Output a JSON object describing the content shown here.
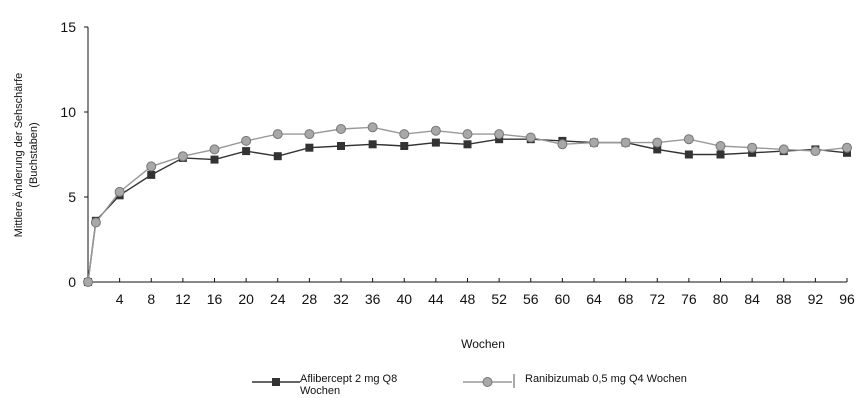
{
  "chart_data": {
    "type": "line",
    "title": "",
    "ylabel_line1": "Mittlere Änderung der Sehschärfe",
    "ylabel_line2": "(Buchstaben)",
    "xlabel": "Wochen",
    "ylim": [
      0,
      15
    ],
    "xlim": [
      0,
      96
    ],
    "yticks": [
      0,
      5,
      10,
      15
    ],
    "xticks": [
      4,
      8,
      12,
      16,
      20,
      24,
      28,
      32,
      36,
      40,
      44,
      48,
      52,
      56,
      60,
      64,
      68,
      72,
      76,
      80,
      84,
      88,
      92,
      96
    ],
    "grid": false,
    "legend_position": "bottom",
    "series": [
      {
        "name_line1": "Aflibercept 2 mg Q8",
        "name_line2": "Wochen",
        "marker": "square",
        "color": "#333333",
        "x": [
          0,
          1,
          4,
          8,
          12,
          16,
          20,
          24,
          28,
          32,
          36,
          40,
          44,
          48,
          52,
          56,
          60,
          64,
          68,
          72,
          76,
          80,
          84,
          88,
          92,
          96
        ],
        "values": [
          0,
          3.6,
          5.1,
          6.3,
          7.3,
          7.2,
          7.7,
          7.4,
          7.9,
          8.0,
          8.1,
          8.0,
          8.2,
          8.1,
          8.4,
          8.4,
          8.3,
          8.2,
          8.2,
          7.8,
          7.5,
          7.5,
          7.6,
          7.7,
          7.8,
          7.6
        ]
      },
      {
        "name_line1": "Ranibizumab 0,5 mg Q4 Wochen",
        "name_line2": "",
        "marker": "circle",
        "color": "#999999",
        "x": [
          0,
          1,
          4,
          8,
          12,
          16,
          20,
          24,
          28,
          32,
          36,
          40,
          44,
          48,
          52,
          56,
          60,
          64,
          68,
          72,
          76,
          80,
          84,
          88,
          92,
          96
        ],
        "values": [
          0,
          3.5,
          5.3,
          6.8,
          7.4,
          7.8,
          8.3,
          8.7,
          8.7,
          9.0,
          9.1,
          8.7,
          8.9,
          8.7,
          8.7,
          8.5,
          8.1,
          8.2,
          8.2,
          8.2,
          8.4,
          8.0,
          7.9,
          7.8,
          7.7,
          7.9
        ]
      }
    ]
  }
}
